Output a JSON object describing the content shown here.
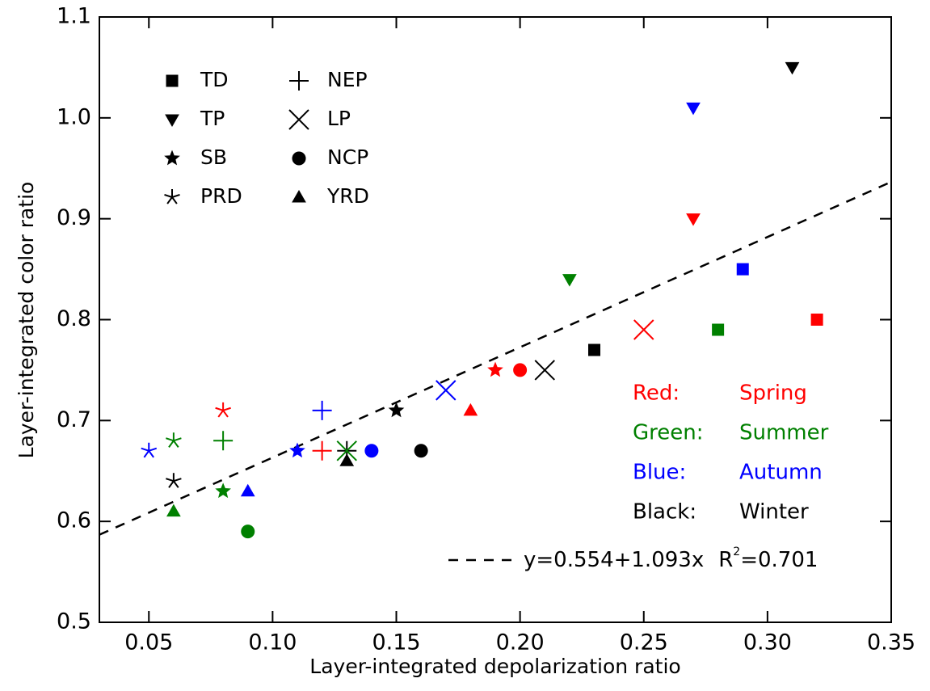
{
  "chart_data": {
    "type": "scatter",
    "x_label": "Layer-integrated depolarization ratio",
    "y_label": "Layer-integrated color ratio",
    "xlim": [
      0.03,
      0.35
    ],
    "ylim": [
      0.5,
      1.1
    ],
    "xticks": [
      0.05,
      {
        "value": 0.1,
        "label": "0.10"
      },
      0.15,
      {
        "value": 0.2,
        "label": "0.20"
      },
      0.25,
      {
        "value": 0.3,
        "label": "0.30"
      },
      0.35
    ],
    "yticks": [
      0.5,
      0.6,
      0.7,
      0.8,
      0.9,
      {
        "value": 1,
        "label": "1.0"
      },
      1.1
    ],
    "seasons": [
      {
        "label": "Red:",
        "name": "Spring",
        "color": "#ff0000"
      },
      {
        "label": "Green:",
        "name": "Summer",
        "color": "#008000"
      },
      {
        "label": "Blue:",
        "name": "Autumn",
        "color": "#0000ff"
      },
      {
        "label": "Black:",
        "name": "Winter",
        "color": "#000000"
      }
    ],
    "series": [
      {
        "name": "TD",
        "marker": "square",
        "x": [
          0.32,
          0.28,
          0.29,
          0.23
        ],
        "values": [
          0.8,
          0.79,
          0.85,
          0.77
        ]
      },
      {
        "name": "TP",
        "marker": "triangle-down",
        "x": [
          0.27,
          0.22,
          0.27,
          0.31
        ],
        "values": [
          0.9,
          0.84,
          1.01,
          1.05
        ]
      },
      {
        "name": "SB",
        "marker": "star",
        "x": [
          0.19,
          0.08,
          0.11,
          0.15
        ],
        "values": [
          0.75,
          0.63,
          0.67,
          0.71
        ]
      },
      {
        "name": "PRD",
        "marker": "asterisk",
        "x": [
          0.08,
          0.06,
          0.05,
          0.06
        ],
        "values": [
          0.71,
          0.68,
          0.67,
          0.64
        ]
      },
      {
        "name": "NEP",
        "marker": "plus",
        "x": [
          0.12,
          0.08,
          0.12,
          0.13
        ],
        "values": [
          0.67,
          0.68,
          0.71,
          0.67
        ]
      },
      {
        "name": "LP",
        "marker": "cross",
        "x": [
          0.25,
          0.13,
          0.17,
          0.21
        ],
        "values": [
          0.79,
          0.67,
          0.73,
          0.75
        ]
      },
      {
        "name": "NCP",
        "marker": "circle",
        "x": [
          0.2,
          0.09,
          0.14,
          0.16
        ],
        "values": [
          0.75,
          0.59,
          0.67,
          0.67
        ]
      },
      {
        "name": "YRD",
        "marker": "triangle-up",
        "x": [
          0.18,
          0.06,
          0.09,
          0.13
        ],
        "values": [
          0.71,
          0.61,
          0.63,
          0.66
        ]
      }
    ],
    "fit": {
      "intercept": 0.554,
      "slope": 1.093,
      "equation": "y=0.554+1.093x",
      "r2_symbol": "R",
      "r2_exponent": "2",
      "r2_text": "=0.701"
    }
  }
}
